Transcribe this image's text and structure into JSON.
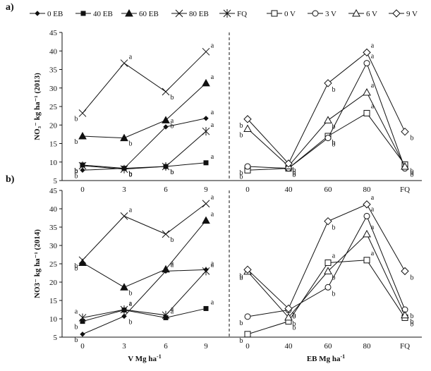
{
  "chart_data": {
    "type": "line",
    "panels": [
      {
        "label": "a)",
        "ylabel": "NO₃⁻ kg ha⁻¹ (2013)"
      },
      {
        "label": "b)",
        "ylabel": "NO3⁻ kg ha⁻¹ (2014)"
      }
    ],
    "xlabel_left": "V Mg ha-1",
    "xlabel_right": "EB Mg ha-1",
    "ylim": [
      5,
      45
    ],
    "yticks": [
      "5",
      "10",
      "15",
      "20",
      "25",
      "30",
      "35",
      "40",
      "45"
    ],
    "left_categories": [
      "0",
      "3",
      "6",
      "9"
    ],
    "right_categories": [
      "0",
      "40",
      "60",
      "80",
      "FQ"
    ],
    "legend_left": [
      {
        "name": "0 EB",
        "marker": "diamond-small"
      },
      {
        "name": "40 EB",
        "marker": "square-filled"
      },
      {
        "name": "60 EB",
        "marker": "triangle-filled"
      },
      {
        "name": "80 EB",
        "marker": "x"
      },
      {
        "name": "FQ",
        "marker": "star"
      }
    ],
    "legend_right": [
      {
        "name": "0 V",
        "marker": "square-open"
      },
      {
        "name": "3 V",
        "marker": "circle-open"
      },
      {
        "name": "6 V",
        "marker": "triangle-open"
      },
      {
        "name": "9 V",
        "marker": "diamond-open"
      }
    ],
    "left_series": [
      [
        {
          "name": "0 EB",
          "values": [
            7.8,
            8.3,
            19.5,
            21.8
          ],
          "labels": [
            "b",
            "b",
            "a",
            "a"
          ]
        },
        {
          "name": "40 EB",
          "values": [
            9.2,
            8.3,
            8.8,
            9.8
          ],
          "labels": [
            "b",
            "b",
            "b",
            "a"
          ]
        },
        {
          "name": "60 EB",
          "values": [
            17.0,
            16.5,
            21.3,
            31.3
          ],
          "labels": [
            "b",
            "b",
            "b",
            "a"
          ]
        },
        {
          "name": "80 EB",
          "values": [
            23.2,
            36.7,
            29.0,
            39.8
          ],
          "labels": [
            "b",
            "a",
            "b",
            "a"
          ]
        },
        {
          "name": "FQ",
          "values": [
            9.0,
            8.1,
            8.8,
            18.3
          ],
          "labels": [
            "b",
            "b",
            "b",
            "a"
          ]
        }
      ],
      [
        {
          "name": "0 EB",
          "values": [
            5.8,
            10.7,
            23.0,
            23.4
          ],
          "labels": [
            "b",
            "b",
            "a",
            "a"
          ]
        },
        {
          "name": "40 EB",
          "values": [
            9.3,
            12.4,
            10.3,
            12.8
          ],
          "labels": [
            "b",
            "a",
            "a",
            "a"
          ]
        },
        {
          "name": "60 EB",
          "values": [
            25.3,
            18.6,
            23.5,
            36.8
          ],
          "labels": [
            "b",
            "b",
            "a",
            "a"
          ]
        },
        {
          "name": "80 EB",
          "values": [
            26.0,
            38.0,
            33.1,
            41.4
          ],
          "labels": [
            "b",
            "a",
            "b",
            "a"
          ]
        },
        {
          "name": "FQ",
          "values": [
            10.3,
            12.5,
            11.0,
            23.0
          ],
          "labels": [
            "a",
            "a",
            "a",
            "a"
          ]
        }
      ]
    ],
    "right_series": [
      [
        {
          "name": "0 V",
          "values": [
            7.8,
            8.3,
            17.0,
            23.2,
            9.3
          ],
          "labels": [
            "b",
            "b",
            "b",
            "a",
            "b"
          ]
        },
        {
          "name": "3 V",
          "values": [
            8.8,
            8.3,
            16.5,
            36.7,
            8.3
          ],
          "labels": [
            "b",
            "b",
            "b",
            "a",
            "b"
          ]
        },
        {
          "name": "6 V",
          "values": [
            19.0,
            8.9,
            21.3,
            28.8,
            8.8
          ],
          "labels": [
            "b",
            "b",
            "b",
            "a",
            "b"
          ]
        },
        {
          "name": "9 V",
          "values": [
            21.6,
            9.6,
            31.3,
            39.6,
            18.2
          ],
          "labels": [
            "b",
            "b",
            "b",
            "a",
            "b"
          ]
        }
      ],
      [
        {
          "name": "0 V",
          "values": [
            5.8,
            9.3,
            25.3,
            26.0,
            10.3
          ],
          "labels": [
            "b",
            "b",
            "a",
            "a",
            "b"
          ]
        },
        {
          "name": "3 V",
          "values": [
            10.6,
            12.4,
            18.6,
            38.0,
            12.5
          ],
          "labels": [
            "b",
            "b",
            "b",
            "a",
            "b"
          ]
        },
        {
          "name": "6 V",
          "values": [
            22.9,
            10.4,
            23.0,
            33.1,
            11.0
          ],
          "labels": [
            "b",
            "b",
            "b",
            "a",
            "b"
          ]
        },
        {
          "name": "9 V",
          "values": [
            23.4,
            12.8,
            36.6,
            41.2,
            23.0
          ],
          "labels": [
            "b",
            "b",
            "b",
            "a",
            "b"
          ]
        }
      ]
    ]
  }
}
